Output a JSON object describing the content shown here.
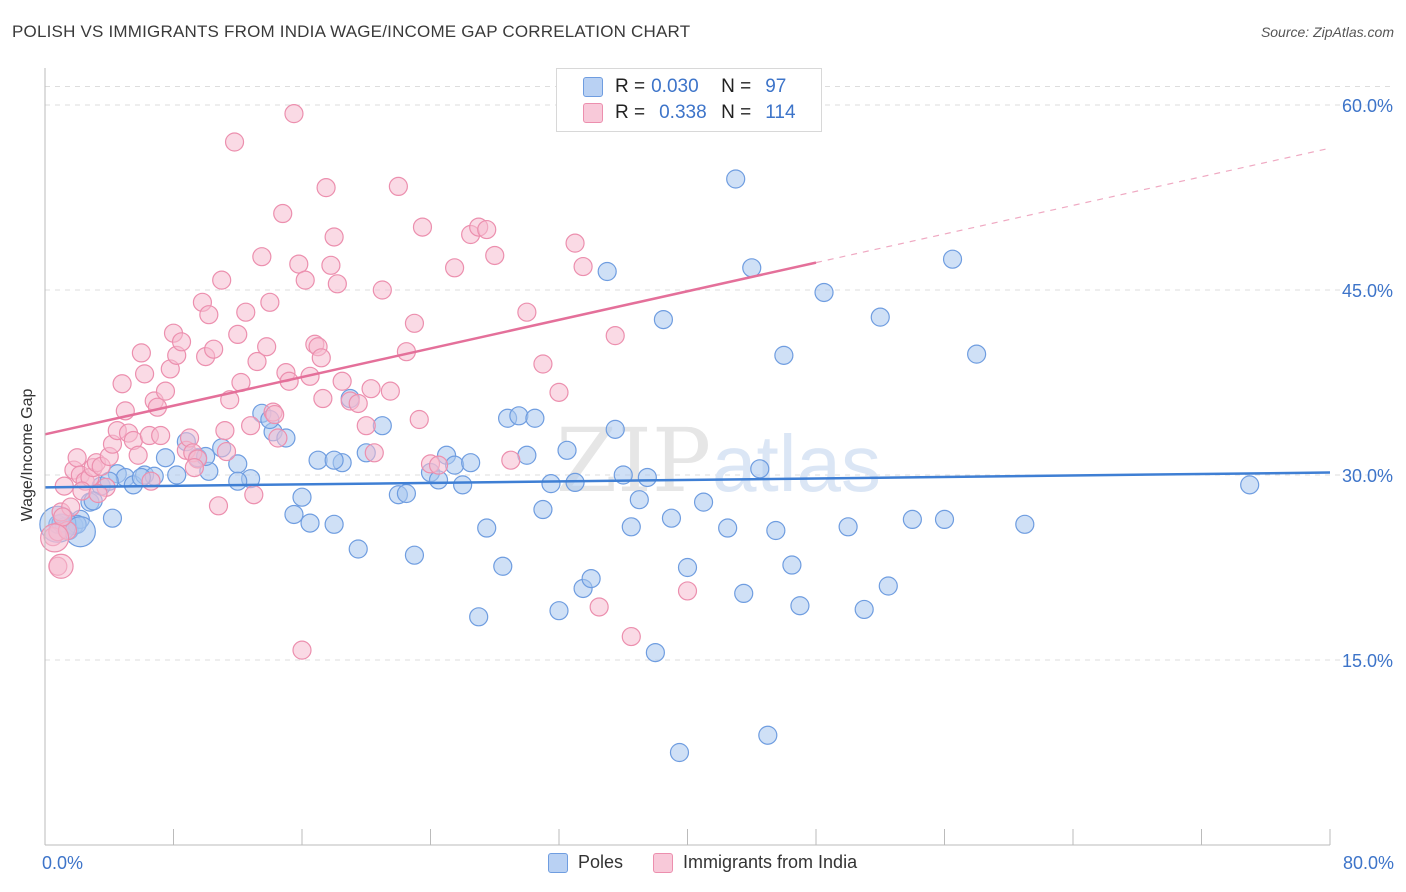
{
  "header": {
    "title": "POLISH VS IMMIGRANTS FROM INDIA WAGE/INCOME GAP CORRELATION CHART",
    "source": "Source: ZipAtlas.com"
  },
  "watermark": {
    "part1": "ZIP",
    "part2": "atlas"
  },
  "legend_top": {
    "rows": [
      {
        "r_label": "R =",
        "r_value": "0.030",
        "n_label": "N =",
        "n_value": "97"
      },
      {
        "r_label": "R =",
        "r_value": "0.338",
        "n_label": "N =",
        "n_value": "114"
      }
    ]
  },
  "colors": {
    "poles_fill": "#a8c6ef",
    "poles_stroke": "#6f9de0",
    "poles_line": "#3f7fd4",
    "india_fill": "#f6bcd0",
    "india_stroke": "#ec8fae",
    "india_line": "#e4709a",
    "tick_label": "#3d74c9",
    "grid": "#dddddd"
  },
  "chart_data": {
    "type": "scatter",
    "title": "POLISH VS IMMIGRANTS FROM INDIA WAGE/INCOME GAP CORRELATION CHART",
    "xlabel": "",
    "ylabel": "Wage/Income Gap",
    "xlim": [
      0,
      80
    ],
    "ylim": [
      0,
      63
    ],
    "x_tick_labels": {
      "min": "0.0%",
      "max": "80.0%"
    },
    "y_ticks": [
      {
        "value": 15,
        "label": "15.0%"
      },
      {
        "value": 30,
        "label": "30.0%"
      },
      {
        "value": 45,
        "label": "45.0%"
      },
      {
        "value": 60,
        "label": "60.0%"
      }
    ],
    "legend": [
      "Poles",
      "Immigrants from India"
    ],
    "series": [
      {
        "name": "Poles",
        "R": 0.03,
        "N": 97,
        "trend": {
          "x0": 0,
          "y0": 29.0,
          "x1": 80,
          "y1": 30.2,
          "solid_to": 80
        },
        "points": [
          [
            0.8,
            26.0
          ],
          [
            1.2,
            25.8
          ],
          [
            1.5,
            25.5
          ],
          [
            1.8,
            25.9
          ],
          [
            2.2,
            26.4
          ],
          [
            2.8,
            27.8
          ],
          [
            3.5,
            29.1
          ],
          [
            4.2,
            26.5
          ],
          [
            4.5,
            30.1
          ],
          [
            5.0,
            29.8
          ],
          [
            5.5,
            29.2
          ],
          [
            6.2,
            30.0
          ],
          [
            6.8,
            29.9
          ],
          [
            7.5,
            31.4
          ],
          [
            8.2,
            30.0
          ],
          [
            8.8,
            32.7
          ],
          [
            9.5,
            31.4
          ],
          [
            10.2,
            30.3
          ],
          [
            11.0,
            32.2
          ],
          [
            12.0,
            30.9
          ],
          [
            12.8,
            29.7
          ],
          [
            13.5,
            35.0
          ],
          [
            14.2,
            33.5
          ],
          [
            15.0,
            33.0
          ],
          [
            15.5,
            26.8
          ],
          [
            16.0,
            28.2
          ],
          [
            16.5,
            26.1
          ],
          [
            17.0,
            31.2
          ],
          [
            18.0,
            26.0
          ],
          [
            18.5,
            31.0
          ],
          [
            19.0,
            36.2
          ],
          [
            19.5,
            24.0
          ],
          [
            20.0,
            31.8
          ],
          [
            21.0,
            34.0
          ],
          [
            22.0,
            28.4
          ],
          [
            23.0,
            23.5
          ],
          [
            24.0,
            30.2
          ],
          [
            24.5,
            29.6
          ],
          [
            25.0,
            31.6
          ],
          [
            25.5,
            30.8
          ],
          [
            26.0,
            29.2
          ],
          [
            27.0,
            18.5
          ],
          [
            27.5,
            25.7
          ],
          [
            28.5,
            22.6
          ],
          [
            28.8,
            34.6
          ],
          [
            29.5,
            34.8
          ],
          [
            30.0,
            31.6
          ],
          [
            30.5,
            34.6
          ],
          [
            31.0,
            27.2
          ],
          [
            31.5,
            29.3
          ],
          [
            32.0,
            19.0
          ],
          [
            32.5,
            32.0
          ],
          [
            33.0,
            29.4
          ],
          [
            33.5,
            20.8
          ],
          [
            34.0,
            21.6
          ],
          [
            35.0,
            46.5
          ],
          [
            35.5,
            33.7
          ],
          [
            36.0,
            30.0
          ],
          [
            36.5,
            25.8
          ],
          [
            37.0,
            28.0
          ],
          [
            38.0,
            15.6
          ],
          [
            38.5,
            42.6
          ],
          [
            39.0,
            26.5
          ],
          [
            39.5,
            7.5
          ],
          [
            41.0,
            27.8
          ],
          [
            42.5,
            25.7
          ],
          [
            43.0,
            54.0
          ],
          [
            43.5,
            20.4
          ],
          [
            44.0,
            46.8
          ],
          [
            44.5,
            30.5
          ],
          [
            45.0,
            8.9
          ],
          [
            45.5,
            25.5
          ],
          [
            46.0,
            39.7
          ],
          [
            46.5,
            22.7
          ],
          [
            47.0,
            19.4
          ],
          [
            48.5,
            44.8
          ],
          [
            50.0,
            25.8
          ],
          [
            51.0,
            19.1
          ],
          [
            52.0,
            42.8
          ],
          [
            52.5,
            21.0
          ],
          [
            54.0,
            26.4
          ],
          [
            56.0,
            26.4
          ],
          [
            56.5,
            47.5
          ],
          [
            58.0,
            39.8
          ],
          [
            61.0,
            26.0
          ],
          [
            75.0,
            29.2
          ],
          [
            1.0,
            26.1
          ],
          [
            2.0,
            26.0
          ],
          [
            3.0,
            27.9
          ],
          [
            4.0,
            29.5
          ],
          [
            6.0,
            29.8
          ],
          [
            10.0,
            31.5
          ],
          [
            12.0,
            29.5
          ],
          [
            14.0,
            34.5
          ],
          [
            18.0,
            31.2
          ],
          [
            22.5,
            28.5
          ],
          [
            26.5,
            31.0
          ],
          [
            37.5,
            29.8
          ],
          [
            40.0,
            22.5
          ]
        ],
        "large_points": [
          [
            0.8,
            26.0,
            18
          ],
          [
            2.2,
            25.4,
            15
          ]
        ]
      },
      {
        "name": "Immigrants from India",
        "R": 0.338,
        "N": 114,
        "trend": {
          "x0": 0,
          "y0": 33.3,
          "x1": 80,
          "y1": 56.5,
          "solid_to": 48
        },
        "points": [
          [
            0.5,
            25.0
          ],
          [
            0.8,
            25.4
          ],
          [
            1.0,
            27.0
          ],
          [
            1.2,
            29.1
          ],
          [
            1.4,
            25.5
          ],
          [
            1.6,
            27.4
          ],
          [
            1.8,
            30.4
          ],
          [
            2.0,
            31.4
          ],
          [
            2.2,
            30.0
          ],
          [
            2.5,
            29.5
          ],
          [
            2.8,
            29.8
          ],
          [
            3.0,
            30.6
          ],
          [
            3.2,
            31.0
          ],
          [
            3.5,
            30.7
          ],
          [
            3.8,
            29.0
          ],
          [
            4.0,
            31.5
          ],
          [
            4.2,
            32.5
          ],
          [
            4.5,
            33.6
          ],
          [
            4.8,
            37.4
          ],
          [
            5.0,
            35.2
          ],
          [
            5.2,
            33.4
          ],
          [
            5.5,
            32.8
          ],
          [
            5.8,
            31.6
          ],
          [
            6.0,
            39.9
          ],
          [
            6.2,
            38.2
          ],
          [
            6.5,
            33.2
          ],
          [
            6.8,
            36.0
          ],
          [
            7.0,
            35.5
          ],
          [
            7.2,
            33.2
          ],
          [
            7.5,
            36.8
          ],
          [
            7.8,
            38.6
          ],
          [
            8.0,
            41.5
          ],
          [
            8.2,
            39.7
          ],
          [
            8.5,
            40.8
          ],
          [
            8.8,
            32.0
          ],
          [
            9.0,
            33.0
          ],
          [
            9.2,
            31.8
          ],
          [
            9.5,
            31.3
          ],
          [
            9.8,
            44.0
          ],
          [
            10.0,
            39.6
          ],
          [
            10.2,
            43.0
          ],
          [
            10.5,
            40.2
          ],
          [
            10.8,
            27.5
          ],
          [
            11.0,
            45.8
          ],
          [
            11.2,
            33.6
          ],
          [
            11.5,
            36.1
          ],
          [
            11.8,
            57.0
          ],
          [
            12.0,
            41.4
          ],
          [
            12.2,
            37.5
          ],
          [
            12.5,
            43.2
          ],
          [
            12.8,
            34.0
          ],
          [
            13.0,
            28.4
          ],
          [
            13.2,
            39.2
          ],
          [
            13.5,
            47.7
          ],
          [
            13.8,
            40.4
          ],
          [
            14.0,
            44.0
          ],
          [
            14.2,
            35.1
          ],
          [
            14.5,
            33.0
          ],
          [
            14.8,
            51.2
          ],
          [
            15.0,
            38.3
          ],
          [
            15.2,
            37.6
          ],
          [
            15.5,
            59.3
          ],
          [
            15.8,
            47.1
          ],
          [
            16.0,
            15.8
          ],
          [
            16.2,
            45.8
          ],
          [
            16.5,
            38.0
          ],
          [
            16.8,
            40.6
          ],
          [
            17.0,
            40.4
          ],
          [
            17.2,
            39.5
          ],
          [
            17.5,
            53.3
          ],
          [
            17.8,
            47.0
          ],
          [
            18.0,
            49.3
          ],
          [
            18.2,
            45.5
          ],
          [
            18.5,
            37.6
          ],
          [
            19.0,
            36.0
          ],
          [
            19.5,
            35.8
          ],
          [
            20.0,
            34.0
          ],
          [
            20.5,
            31.8
          ],
          [
            21.0,
            45.0
          ],
          [
            21.5,
            36.8
          ],
          [
            22.0,
            53.4
          ],
          [
            22.5,
            40.0
          ],
          [
            23.0,
            42.3
          ],
          [
            23.5,
            50.1
          ],
          [
            24.0,
            30.9
          ],
          [
            24.5,
            30.8
          ],
          [
            25.5,
            46.8
          ],
          [
            26.5,
            49.5
          ],
          [
            27.0,
            50.1
          ],
          [
            27.5,
            49.9
          ],
          [
            28.0,
            47.8
          ],
          [
            29.0,
            31.2
          ],
          [
            30.0,
            43.2
          ],
          [
            31.0,
            39.0
          ],
          [
            32.0,
            36.7
          ],
          [
            33.0,
            48.8
          ],
          [
            33.5,
            46.9
          ],
          [
            34.5,
            19.3
          ],
          [
            35.5,
            41.3
          ],
          [
            36.5,
            16.9
          ],
          [
            40.0,
            20.6
          ],
          [
            0.8,
            22.6
          ],
          [
            1.1,
            26.6
          ],
          [
            2.3,
            28.7
          ],
          [
            3.3,
            28.5
          ],
          [
            6.6,
            29.5
          ],
          [
            9.3,
            30.6
          ],
          [
            11.3,
            31.9
          ],
          [
            14.3,
            34.9
          ],
          [
            17.3,
            36.2
          ],
          [
            20.3,
            37.0
          ],
          [
            23.3,
            34.5
          ]
        ],
        "large_points": [
          [
            0.6,
            24.9,
            14
          ],
          [
            1.0,
            22.6,
            12
          ]
        ]
      }
    ]
  },
  "legend_bottom": {
    "poles": "Poles",
    "india": "Immigrants from India"
  }
}
